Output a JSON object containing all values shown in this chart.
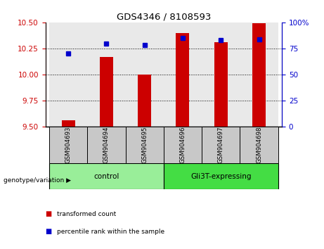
{
  "title": "GDS4346 / 8108593",
  "samples": [
    "GSM904693",
    "GSM904694",
    "GSM904695",
    "GSM904696",
    "GSM904697",
    "GSM904698"
  ],
  "bar_values": [
    9.56,
    10.17,
    10.0,
    10.4,
    10.31,
    10.49
  ],
  "percentile_values": [
    70,
    80,
    78,
    85,
    83,
    84
  ],
  "bar_color": "#cc0000",
  "percentile_color": "#0000cc",
  "ylim_left": [
    9.5,
    10.5
  ],
  "ylim_right": [
    0,
    100
  ],
  "yticks_left": [
    9.5,
    9.75,
    10.0,
    10.25,
    10.5
  ],
  "yticks_right": [
    0,
    25,
    50,
    75,
    100
  ],
  "ytick_right_labels": [
    "0",
    "25",
    "50",
    "75",
    "100%"
  ],
  "groups": [
    {
      "label": "control",
      "indices": [
        0,
        1,
        2
      ],
      "color": "#99ee99"
    },
    {
      "label": "Gli3T-expressing",
      "indices": [
        3,
        4,
        5
      ],
      "color": "#44dd44"
    }
  ],
  "genotype_label": "genotype/variation",
  "legend_items": [
    {
      "label": "transformed count",
      "color": "#cc0000"
    },
    {
      "label": "percentile rank within the sample",
      "color": "#0000cc"
    }
  ],
  "bar_width": 0.35,
  "plot_bg": "#ffffff",
  "tick_color_left": "#cc0000",
  "tick_color_right": "#0000cc",
  "sample_bg_color": "#c8c8c8",
  "col_bg_alpha": 0.4
}
